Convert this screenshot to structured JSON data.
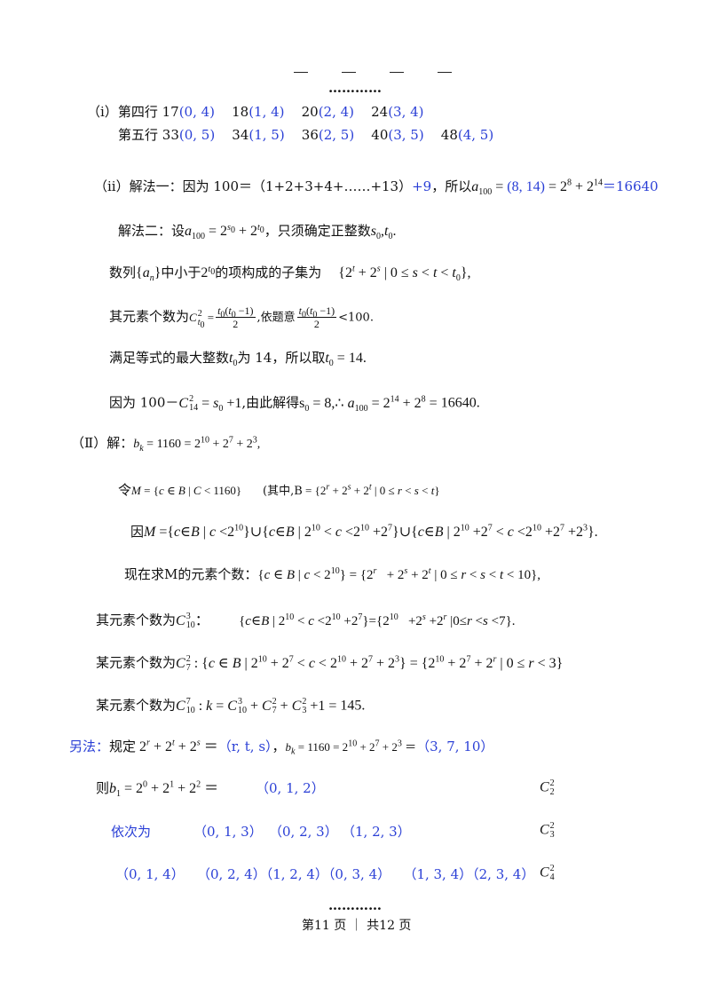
{
  "top": {
    "dots": "…………",
    "bottom_dots": "…………"
  },
  "part1_i": {
    "label": "（i）",
    "row4_label": "第四行 ",
    "row4_items": [
      "17",
      "(0, 4)",
      "18",
      "(1, 4)",
      "20",
      "(2, 4)",
      "24",
      "(3, 4)"
    ],
    "row5_label": "第五行 ",
    "row5_items": [
      "33",
      "(0, 5)",
      "34",
      "(1, 5)",
      "36",
      "(2, 5)",
      "40",
      "(3, 5)",
      "48",
      "(4, 5)"
    ]
  },
  "part1_ii": {
    "label": "（ⅰⅰ）解法一：因为 100＝（1+2+3+4+……+13）",
    "plus9": "+9",
    "so_text": "，所以",
    "pair": "(8, 14)",
    "result": "＝16640",
    "m2_text": "解法二：设",
    "m2_tail": "，只须确定正整数",
    "subset_text": "数列",
    "subset_mid": "中小于",
    "subset_tail": "的项构成的子集为",
    "count_text": "其元素个数为",
    "count_mid": ",依题意",
    "count_tail": "<100.",
    "max_text": "满足等式的最大整数",
    "max_mid": "为 14，所以取",
    "max_val": "14.",
    "because_text": "因为 100－",
    "because_tail": ",由此解得",
    "final_val": "16640."
  },
  "part2": {
    "label": "（Ⅱ）解：",
    "bk_val": "1160",
    "let_text": "令",
    "let_mid": "(其中,B",
    "because_text": "因",
    "now_text": "现在求M的元素个数：",
    "count1_text": "其元素个数为",
    "count2_text": "某元素个数为",
    "count3_text": "某元素个数为",
    "count3_val": "145."
  },
  "alt": {
    "label": "另法：",
    "define_text": "规定",
    "define_val": "（r, t, s）",
    "bk_triple": "（3, 7, 10）",
    "then_text": "则",
    "b1_triple": "（0, 1, 2）",
    "seq_text": "依次为",
    "seq_items": [
      "（0, 1, 3）",
      "（0, 2, 3）",
      "（1, 2, 3）"
    ],
    "row4_items": [
      "（0, 1, 4）",
      "（0, 2, 4）",
      "（1, 2, 4）",
      "（0, 3, 4）",
      "（1, 3, 4）",
      "（2, 3, 4）"
    ]
  },
  "footer": {
    "page_text": "第11 页 ｜ 共12 页"
  }
}
